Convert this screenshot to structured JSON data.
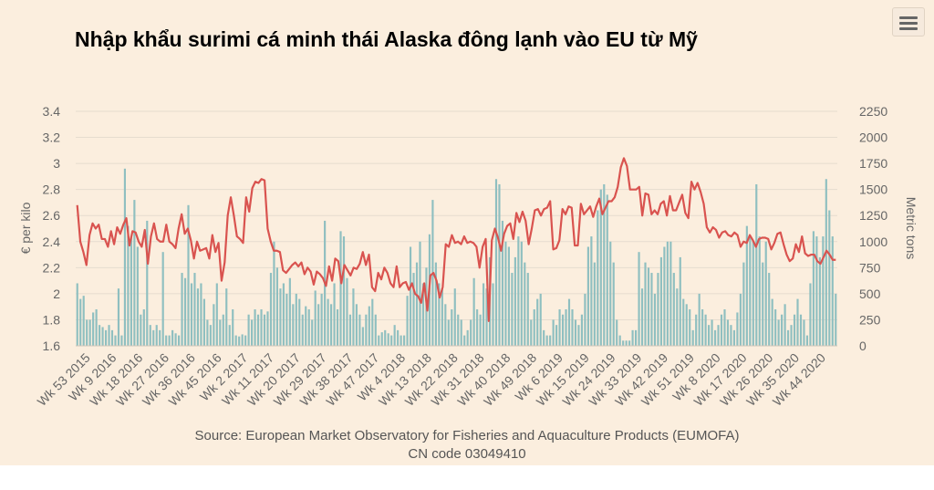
{
  "chart_data": {
    "type": "bar+line",
    "title": "Nhập khẩu surimi cá minh thái Alaska đông lạnh vào EU từ Mỹ",
    "ylabel_left": "€ per kilo",
    "ylabel_right": "Metric tons",
    "ylim_left": [
      1.6,
      3.4
    ],
    "ylim_right": [
      0,
      2250
    ],
    "yticks_left": [
      "1.6",
      "1.8",
      "2",
      "2.2",
      "2.4",
      "2.6",
      "2.8",
      "3",
      "3.2",
      "3.4"
    ],
    "yticks_right": [
      "0",
      "250",
      "500",
      "750",
      "1000",
      "1250",
      "1500",
      "1750",
      "2000",
      "2250"
    ],
    "grid": true,
    "x_tick_labels": [
      "Wk 53 2015",
      "Wk 9 2016",
      "Wk 18 2016",
      "Wk 27 2016",
      "Wk 36 2016",
      "Wk 45 2016",
      "Wk 2 2017",
      "Wk 11 2017",
      "Wk 20 2017",
      "Wk 29 2017",
      "Wk 38 2017",
      "Wk 47 2017",
      "Wk 4 2018",
      "Wk 13 2018",
      "Wk 22 2018",
      "Wk 31 2018",
      "Wk 40 2018",
      "Wk 49 2018",
      "Wk 6 2019",
      "Wk 15 2019",
      "Wk 24 2019",
      "Wk 33 2019",
      "Wk 42 2019",
      "Wk 51 2019",
      "Wk 8 2020",
      "Wk 17 2020",
      "Wk 26 2020",
      "Wk 35 2020",
      "Wk 44 2020"
    ],
    "series": [
      {
        "type": "bar",
        "axis": "right",
        "color": "#8fbfc0",
        "values": [
          600,
          450,
          480,
          250,
          250,
          320,
          350,
          200,
          180,
          150,
          200,
          150,
          100,
          550,
          100,
          1700,
          1150,
          1050,
          1400,
          950,
          300,
          350,
          1200,
          200,
          150,
          200,
          150,
          900,
          100,
          100,
          150,
          120,
          100,
          700,
          650,
          1350,
          600,
          700,
          550,
          600,
          450,
          250,
          200,
          400,
          600,
          250,
          300,
          550,
          200,
          350,
          100,
          90,
          110,
          100,
          300,
          250,
          350,
          300,
          350,
          300,
          330,
          700,
          1000,
          750,
          550,
          600,
          500,
          650,
          400,
          500,
          450,
          300,
          380,
          350,
          250,
          530,
          400,
          500,
          1200,
          450,
          400,
          600,
          350,
          1100,
          1050,
          650,
          300,
          550,
          400,
          300,
          180,
          300,
          380,
          450,
          300,
          100,
          130,
          150,
          120,
          100,
          200,
          150,
          100,
          100,
          480,
          950,
          700,
          800,
          1000,
          600,
          750,
          1070,
          1400,
          800,
          600,
          550,
          400,
          250,
          350,
          550,
          300,
          250,
          100,
          150,
          250,
          650,
          350,
          300,
          600,
          550,
          850,
          600,
          1600,
          1550,
          1200,
          1000,
          950,
          700,
          850,
          1050,
          1000,
          800,
          700,
          250,
          350,
          450,
          500,
          150,
          100,
          100,
          250,
          200,
          350,
          300,
          350,
          450,
          350,
          250,
          200,
          300,
          500,
          950,
          1050,
          800,
          1300,
          1500,
          1550,
          1450,
          1000,
          800,
          250,
          100,
          50,
          50,
          50,
          150,
          150,
          900,
          550,
          800,
          750,
          700,
          500,
          700,
          850,
          950,
          1000,
          1000,
          700,
          550,
          850,
          450,
          400,
          350,
          150,
          300,
          500,
          350,
          300,
          200,
          250,
          150,
          200,
          300,
          350,
          250,
          200,
          150,
          320,
          500,
          800,
          1150,
          1050,
          1000,
          1550,
          1050,
          800,
          1000,
          700,
          450,
          350,
          250,
          300,
          400,
          150,
          200,
          300,
          450,
          300,
          250,
          100,
          600,
          1100,
          1050,
          850,
          1050,
          1600,
          1300,
          1050,
          500
        ]
      },
      {
        "type": "line",
        "axis": "left",
        "color": "#d9534f",
        "values": [
          2.68,
          2.4,
          2.32,
          2.22,
          2.45,
          2.54,
          2.5,
          2.53,
          2.42,
          2.42,
          2.36,
          2.48,
          2.38,
          2.51,
          2.46,
          2.53,
          2.58,
          2.37,
          2.48,
          2.47,
          2.4,
          2.36,
          2.49,
          2.23,
          2.44,
          2.54,
          2.42,
          2.4,
          2.4,
          2.53,
          2.4,
          2.38,
          2.35,
          2.5,
          2.61,
          2.46,
          2.5,
          2.41,
          2.27,
          2.4,
          2.33,
          2.34,
          2.35,
          2.27,
          2.45,
          2.32,
          2.39,
          2.1,
          2.24,
          2.6,
          2.74,
          2.6,
          2.44,
          2.42,
          2.39,
          2.74,
          2.63,
          2.81,
          2.86,
          2.85,
          2.88,
          2.87,
          2.5,
          2.4,
          2.33,
          2.33,
          2.32,
          2.18,
          2.16,
          2.19,
          2.22,
          2.24,
          2.21,
          2.24,
          2.15,
          2.2,
          2.17,
          2.07,
          2.17,
          2.15,
          2.12,
          2.06,
          2.21,
          2.1,
          2.27,
          2.25,
          2.08,
          2.22,
          2.18,
          2.14,
          2.2,
          2.19,
          2.23,
          2.32,
          2.22,
          2.3,
          2.05,
          2.02,
          2.16,
          2.11,
          2.2,
          2.16,
          2.08,
          2.05,
          2.21,
          2.05,
          2.08,
          2.09,
          2.03,
          2.08,
          2.0,
          1.98,
          1.93,
          2.08,
          1.87,
          2.14,
          2.16,
          2.1,
          1.97,
          2.05,
          2.38,
          2.36,
          2.45,
          2.39,
          2.4,
          2.38,
          2.44,
          2.39,
          2.4,
          2.39,
          2.36,
          2.2,
          2.36,
          2.42,
          1.79,
          2.41,
          2.5,
          2.43,
          2.33,
          2.46,
          2.52,
          2.54,
          2.42,
          2.62,
          2.55,
          2.63,
          2.56,
          2.38,
          2.5,
          2.64,
          2.65,
          2.6,
          2.65,
          2.66,
          2.71,
          2.34,
          2.35,
          2.41,
          2.65,
          2.61,
          2.67,
          2.66,
          2.37,
          2.37,
          2.69,
          2.61,
          2.64,
          2.67,
          2.59,
          2.67,
          2.73,
          2.61,
          2.66,
          2.71,
          2.71,
          2.74,
          2.82,
          2.97,
          3.04,
          2.98,
          2.8,
          2.8,
          2.8,
          2.82,
          2.6,
          2.77,
          2.76,
          2.61,
          2.64,
          2.61,
          2.69,
          2.71,
          2.6,
          2.75,
          2.64,
          2.64,
          2.7,
          2.76,
          2.62,
          2.58,
          2.86,
          2.8,
          2.85,
          2.78,
          2.69,
          2.51,
          2.47,
          2.51,
          2.49,
          2.43,
          2.47,
          2.48,
          2.45,
          2.44,
          2.47,
          2.45,
          2.36,
          2.4,
          2.39,
          2.45,
          2.41,
          2.36,
          2.42,
          2.43,
          2.43,
          2.42,
          2.34,
          2.39,
          2.46,
          2.47,
          2.38,
          2.3,
          2.25,
          2.27,
          2.38,
          2.32,
          2.44,
          2.31,
          2.29,
          2.3,
          2.3,
          2.25,
          2.23,
          2.28,
          2.33,
          2.3,
          2.26,
          2.26
        ]
      }
    ]
  },
  "source": {
    "line1": "Source: European Market Observatory for Fisheries and Aquaculture Products (EUMOFA)",
    "line2": "CN code 03049410"
  },
  "icons": {
    "menu": "hamburger-menu-icon"
  }
}
